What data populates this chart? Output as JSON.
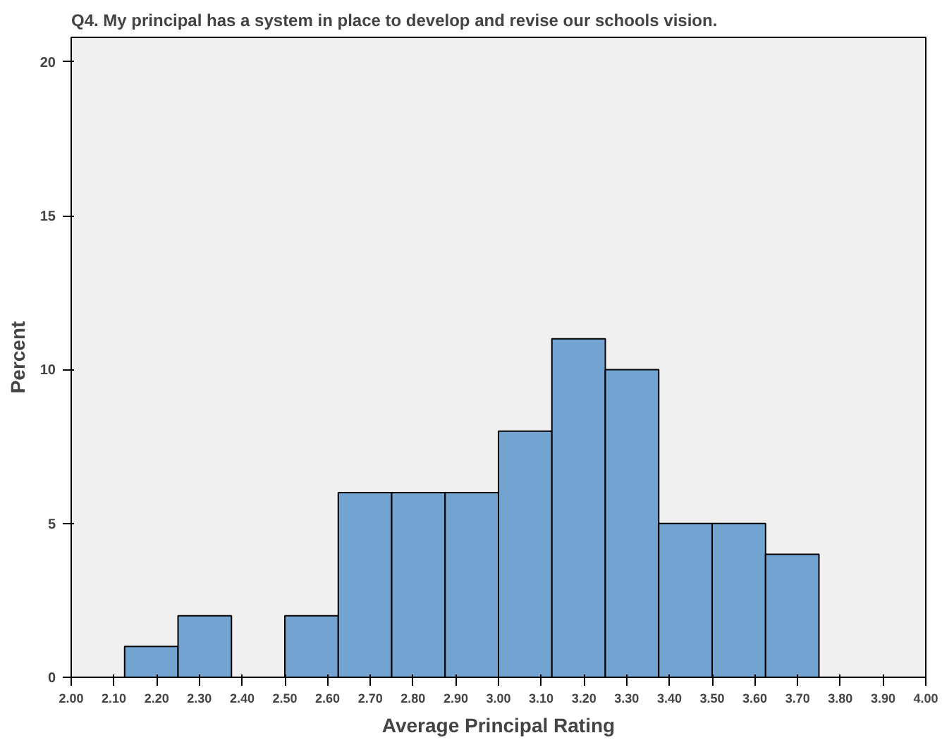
{
  "chart_data": {
    "type": "histogram",
    "title": "Q4. My principal has a system in place to develop and revise our schools vision.",
    "xlabel": "Average Principal Rating",
    "ylabel": "Percent",
    "bins": [
      2.125,
      2.25,
      2.375,
      2.5,
      2.625,
      2.75,
      2.875,
      3.0,
      3.125,
      3.25,
      3.375,
      3.5,
      3.625,
      3.75
    ],
    "values": [
      1,
      2,
      0,
      2,
      6,
      6,
      6,
      8,
      11,
      10,
      5,
      5,
      4
    ],
    "color": "#73a4d1",
    "xlim": [
      2.0,
      4.0
    ],
    "ylim": [
      0,
      20.8
    ],
    "xticks": [
      {
        "value": 2.0,
        "label": "2.00"
      },
      {
        "value": 2.1,
        "label": "2.10"
      },
      {
        "value": 2.2,
        "label": "2.20"
      },
      {
        "value": 2.3,
        "label": "2.30"
      },
      {
        "value": 2.4,
        "label": "2.40"
      },
      {
        "value": 2.5,
        "label": "2.50"
      },
      {
        "value": 2.6,
        "label": "2.60"
      },
      {
        "value": 2.7,
        "label": "2.70"
      },
      {
        "value": 2.8,
        "label": "2.80"
      },
      {
        "value": 2.9,
        "label": "2.90"
      },
      {
        "value": 3.0,
        "label": "3.00"
      },
      {
        "value": 3.1,
        "label": "3.10"
      },
      {
        "value": 3.2,
        "label": "3.20"
      },
      {
        "value": 3.3,
        "label": "3.30"
      },
      {
        "value": 3.4,
        "label": "3.40"
      },
      {
        "value": 3.5,
        "label": "3.50"
      },
      {
        "value": 3.6,
        "label": "3.60"
      },
      {
        "value": 3.7,
        "label": "3.70"
      },
      {
        "value": 3.8,
        "label": "3.80"
      },
      {
        "value": 3.9,
        "label": "3.90"
      },
      {
        "value": 4.0,
        "label": "4.00"
      }
    ],
    "yticks": [
      0,
      5,
      10,
      15,
      20
    ],
    "grid": false
  }
}
